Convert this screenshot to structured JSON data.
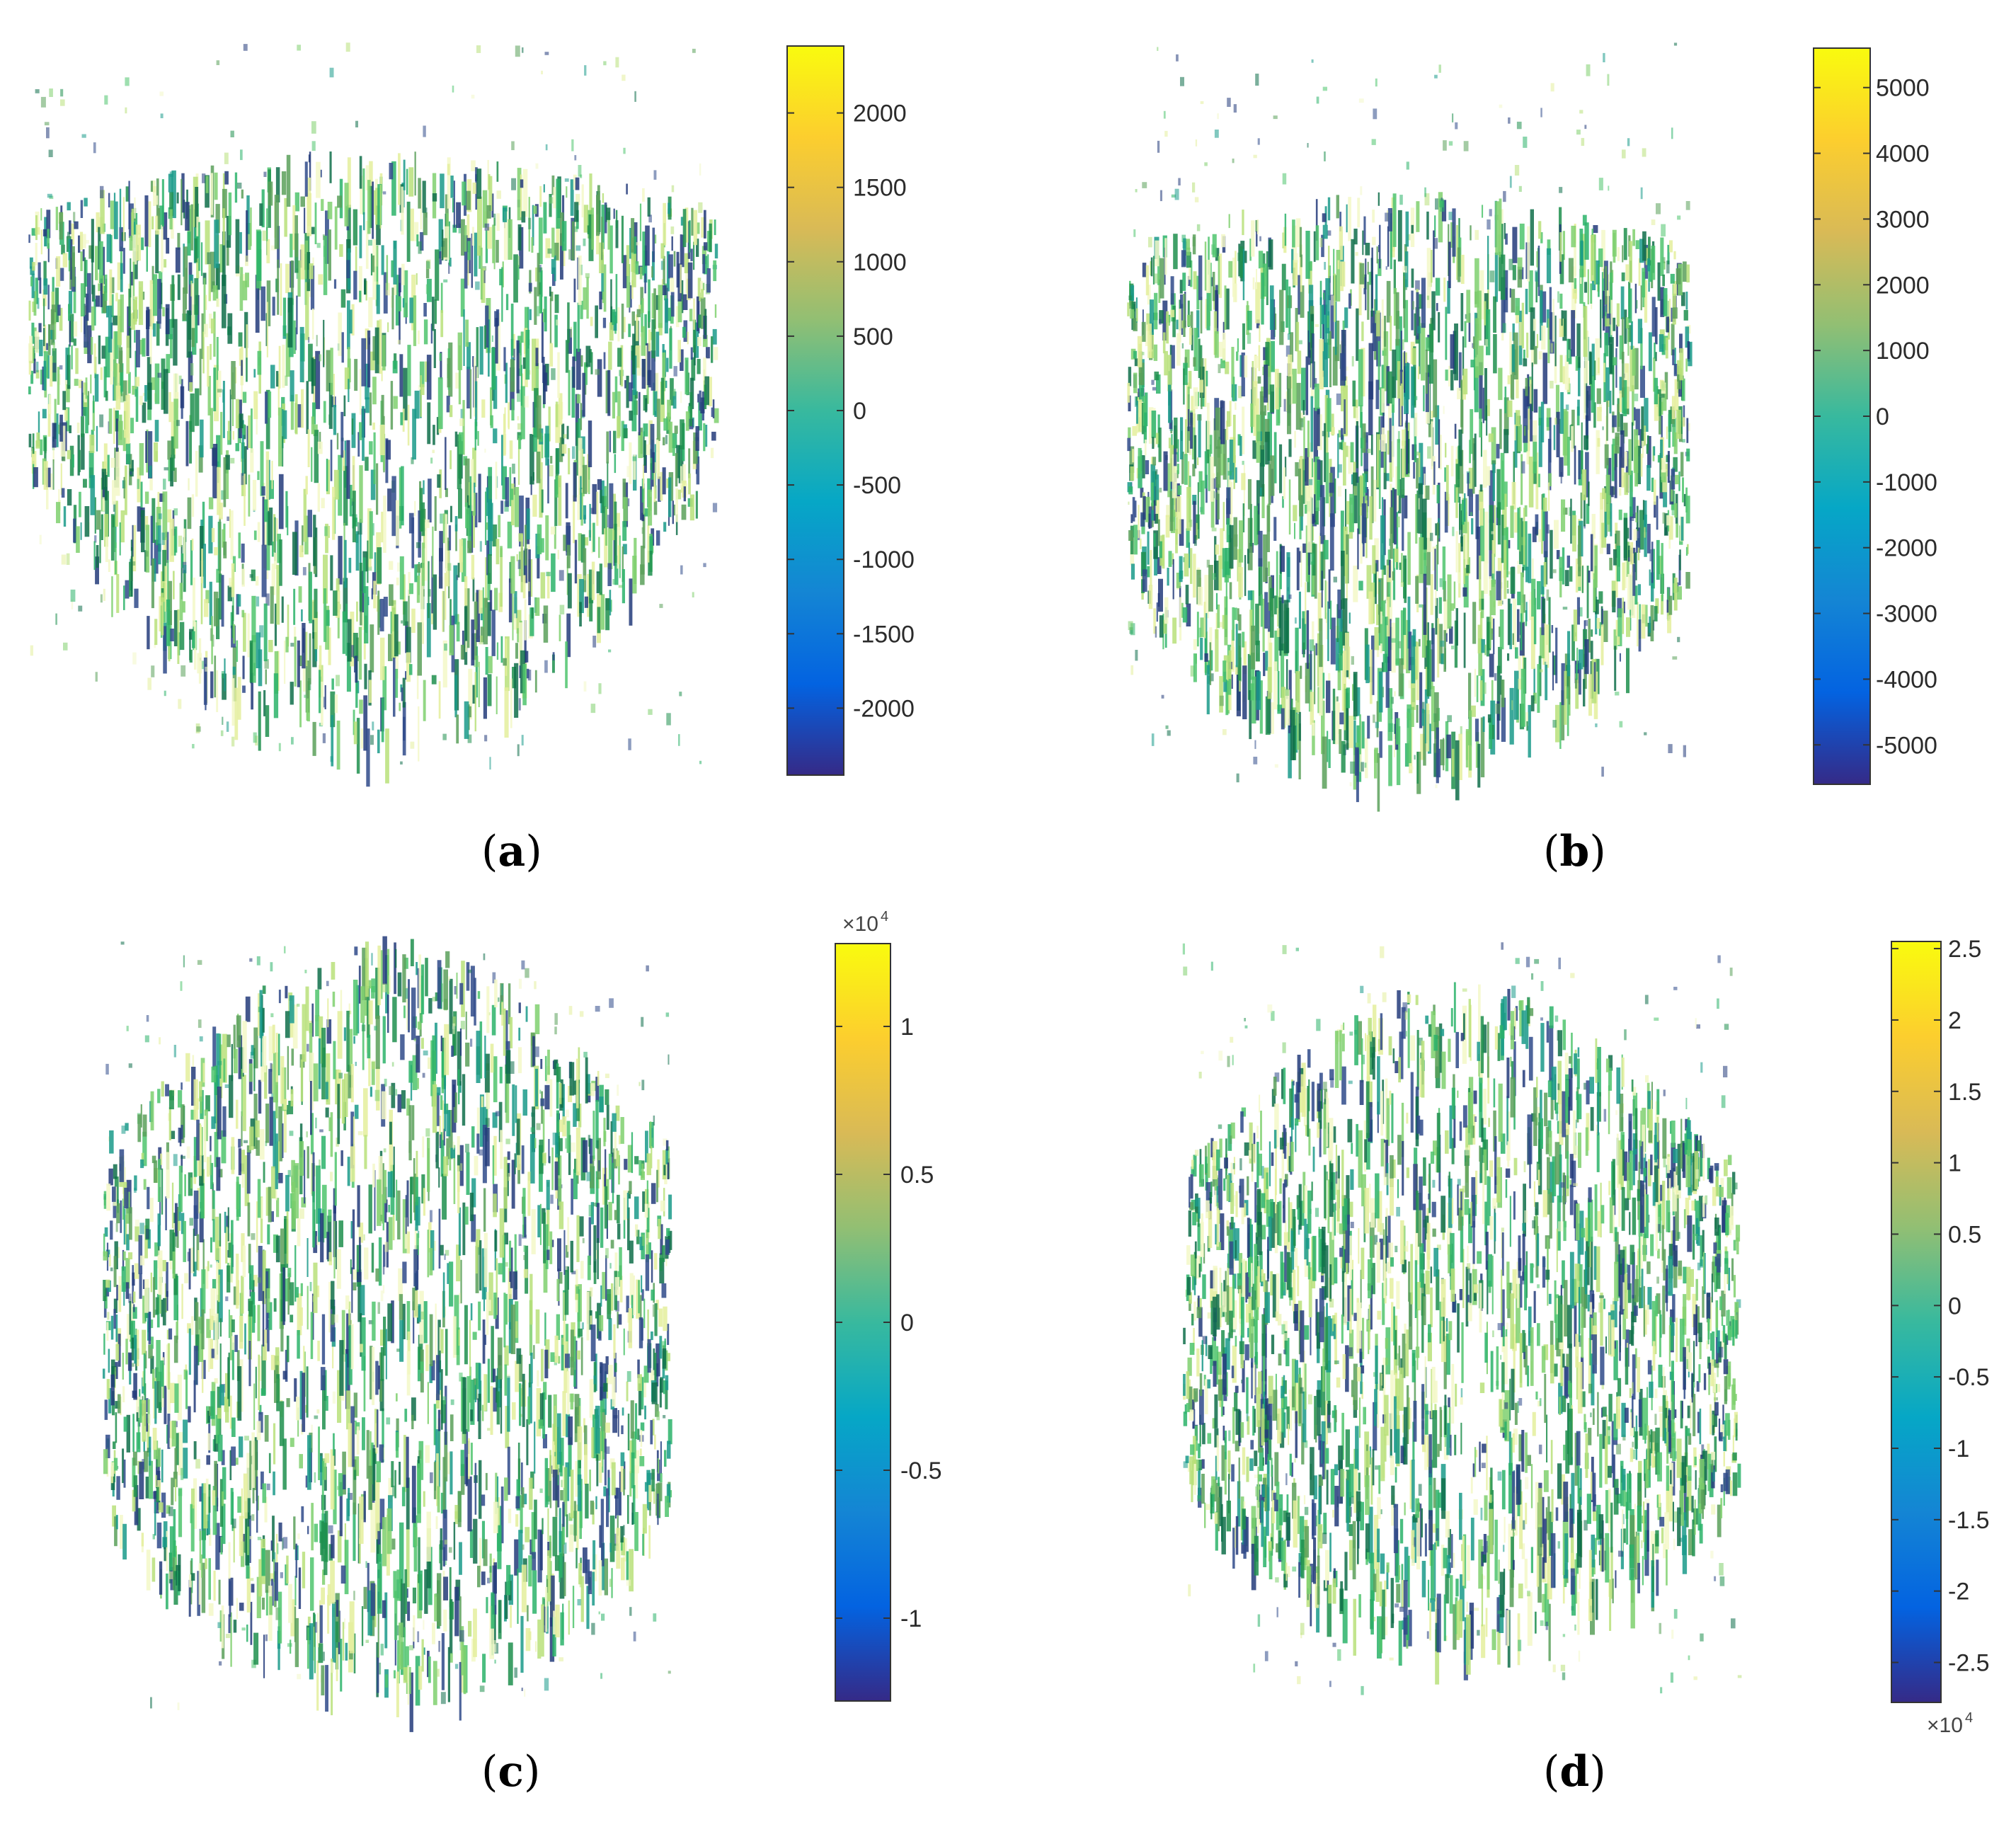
{
  "panels": [
    {
      "label_open": "(",
      "label": "a",
      "label_close": ")",
      "chart_data": {
        "type": "scatter",
        "subtype": "3d-bar-cloud",
        "colormap": "parula",
        "colorbar": {
          "min": -2450,
          "max": 2450,
          "ticks": [
            2000,
            1500,
            1000,
            500,
            0,
            -500,
            -1000,
            -1500,
            -2000
          ],
          "tick_labels": [
            "2000",
            "1500",
            "1000",
            "500",
            "0",
            "-500",
            "-1000",
            "-1500",
            "-2000"
          ],
          "multiplier": ""
        },
        "cloud_shape": "flat"
      }
    },
    {
      "label_open": "(",
      "label": "b",
      "label_close": ")",
      "chart_data": {
        "type": "scatter",
        "subtype": "3d-bar-cloud",
        "colormap": "parula",
        "colorbar": {
          "min": -5600,
          "max": 5600,
          "ticks": [
            5000,
            4000,
            3000,
            2000,
            1000,
            0,
            -1000,
            -2000,
            -3000,
            -4000,
            -5000
          ],
          "tick_labels": [
            "5000",
            "4000",
            "3000",
            "2000",
            "1000",
            "0",
            "-1000",
            "-2000",
            "-3000",
            "-4000",
            "-5000"
          ],
          "multiplier": ""
        },
        "cloud_shape": "round"
      }
    },
    {
      "label_open": "(",
      "label": "c",
      "label_close": ")",
      "chart_data": {
        "type": "scatter",
        "subtype": "3d-bar-cloud",
        "colormap": "parula",
        "colorbar": {
          "min": -1.28,
          "max": 1.28,
          "ticks": [
            1,
            0.5,
            0,
            -0.5,
            -1
          ],
          "tick_labels": [
            "1",
            "0.5",
            "0",
            "-0.5",
            "-1"
          ],
          "multiplier": "×10",
          "multiplier_exp": "4",
          "multiplier_position": "top"
        },
        "cloud_shape": "tall"
      }
    },
    {
      "label_open": "(",
      "label": "d",
      "label_close": ")",
      "chart_data": {
        "type": "scatter",
        "subtype": "3d-bar-cloud",
        "colormap": "parula",
        "colorbar": {
          "min": -2.78,
          "max": 2.55,
          "ticks": [
            2.5,
            2,
            1.5,
            1,
            0.5,
            0,
            -0.5,
            -1,
            -1.5,
            -2,
            -2.5
          ],
          "tick_labels": [
            "2.5",
            "2",
            "1.5",
            "1",
            "0.5",
            "0",
            "-0.5",
            "-1",
            "-1.5",
            "-2",
            "-2.5"
          ],
          "multiplier": "×10",
          "multiplier_exp": "4",
          "multiplier_position": "bottom"
        },
        "cloud_shape": "round"
      }
    }
  ],
  "colors": {
    "parula_stops": [
      "#352a87",
      "#0363e1",
      "#1485d4",
      "#06a7c6",
      "#38b99e",
      "#92bf73",
      "#d9ba56",
      "#fcce2e",
      "#f9fb0e"
    ],
    "cloud_palette": [
      "#1f8f4e",
      "#2bb36a",
      "#4fc46d",
      "#7fd06e",
      "#b8e07a",
      "#e4ef9c",
      "#f3f8c8",
      "#1a9a8a",
      "#2f4a8a",
      "#233b7a",
      "#5aa05a",
      "#0f6e4a"
    ]
  }
}
